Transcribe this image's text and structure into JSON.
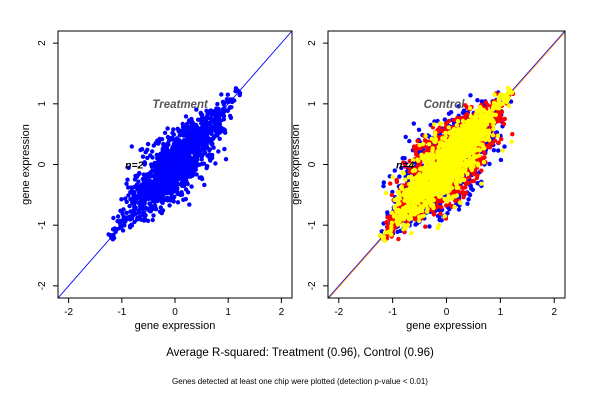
{
  "chart_data": [
    {
      "type": "scatter",
      "title": "",
      "panel_label": "Treatment",
      "n_label": "n=2",
      "xlabel": "gene expression",
      "ylabel": "gene expression",
      "xlim": [
        -2.2,
        2.2
      ],
      "ylim": [
        -2.2,
        2.2
      ],
      "xticks": [
        -2,
        -1,
        0,
        1,
        2
      ],
      "yticks": [
        -2,
        -1,
        0,
        1,
        2
      ],
      "reference_line": {
        "slope": 1,
        "intercept": 0,
        "color": "#0000ff"
      },
      "series": [
        {
          "color": "#0000ff",
          "range": [
            -1.2,
            1.2
          ],
          "spread": 0.26
        }
      ],
      "grid": false
    },
    {
      "type": "scatter",
      "title": "",
      "panel_label": "Control",
      "n_label": "n=4",
      "xlabel": "gene expression",
      "ylabel": "gene expression",
      "xlim": [
        -2.2,
        2.2
      ],
      "ylim": [
        -2.2,
        2.2
      ],
      "xticks": [
        -2,
        -1,
        0,
        1,
        2
      ],
      "yticks": [
        -2,
        -1,
        0,
        1,
        2
      ],
      "reference_line": {
        "slope": 1,
        "intercept": 0,
        "color": "#ff8c00"
      },
      "series": [
        {
          "color": "#0000ff",
          "range": [
            -1.2,
            1.2
          ],
          "spread": 0.34
        },
        {
          "color": "#ff0000",
          "range": [
            -1.2,
            1.2
          ],
          "spread": 0.3
        },
        {
          "color": "#ffff00",
          "range": [
            -1.2,
            1.2
          ],
          "spread": 0.24
        }
      ],
      "grid": false
    }
  ],
  "footer": {
    "summary": "Average R-squared: Treatment (0.96), Control (0.96)",
    "note": "Genes detected at least one chip were plotted (detection p-value < 0.01)"
  }
}
